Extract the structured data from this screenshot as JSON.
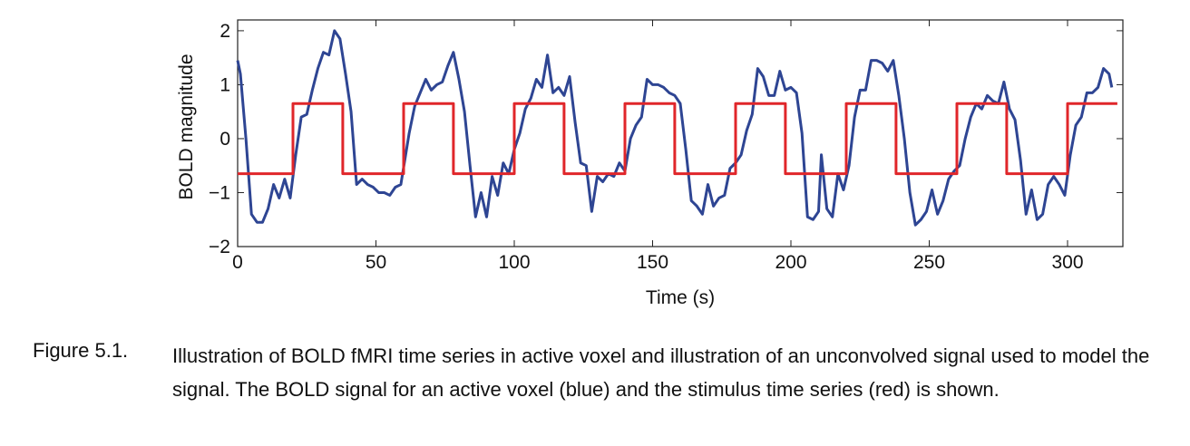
{
  "chart_data": {
    "type": "line",
    "xlabel": "Time (s)",
    "ylabel": "BOLD magnitude",
    "xlim": [
      0,
      320
    ],
    "ylim": [
      -2,
      2.2
    ],
    "xticks": [
      0,
      50,
      100,
      150,
      200,
      250,
      300
    ],
    "yticks": [
      {
        "value": -2,
        "label": "−2"
      },
      {
        "value": -1,
        "label": "−1"
      },
      0,
      1,
      2
    ],
    "series": [
      {
        "color": "#2e4593",
        "x": [
          0,
          1,
          3,
          5,
          7,
          9,
          11,
          13,
          15,
          17,
          19,
          21,
          23,
          25,
          27,
          29,
          31,
          33,
          35,
          37,
          39,
          41,
          43,
          45,
          47,
          49,
          51,
          53,
          55,
          57,
          59,
          62,
          64,
          66,
          68,
          70,
          72,
          74,
          76,
          78,
          80,
          82,
          84,
          86,
          88,
          90,
          92,
          94,
          96,
          98,
          100,
          102,
          104,
          106,
          108,
          110,
          112,
          114,
          116,
          118,
          120,
          122,
          124,
          126,
          128,
          130,
          132,
          134,
          136,
          138,
          140,
          142,
          144,
          146,
          148,
          150,
          152,
          154,
          156,
          158,
          160,
          162,
          164,
          166,
          168,
          170,
          172,
          174,
          176,
          178,
          180,
          182,
          184,
          186,
          188,
          190,
          192,
          194,
          196,
          198,
          200,
          202,
          204,
          206,
          208,
          210,
          211,
          213,
          215,
          217,
          219,
          221,
          223,
          225,
          227,
          229,
          231,
          233,
          235,
          237,
          239,
          241,
          243,
          245,
          247,
          249,
          251,
          253,
          255,
          257,
          259,
          261,
          263,
          265,
          267,
          269,
          271,
          273,
          275,
          277,
          279,
          281,
          283,
          285,
          287,
          289,
          291,
          293,
          295,
          297,
          299,
          301,
          303,
          305,
          307,
          309,
          311,
          313,
          315,
          316
        ],
        "values": [
          1.45,
          1.2,
          0,
          -1.4,
          -1.55,
          -1.55,
          -1.3,
          -0.85,
          -1.1,
          -0.75,
          -1.1,
          -0.3,
          0.4,
          0.45,
          0.9,
          1.3,
          1.6,
          1.55,
          2.0,
          1.85,
          1.2,
          0.5,
          -0.85,
          -0.75,
          -0.85,
          -0.9,
          -1.0,
          -1.0,
          -1.05,
          -0.9,
          -0.85,
          0.1,
          0.6,
          0.85,
          1.1,
          0.9,
          1.0,
          1.05,
          1.35,
          1.6,
          1.1,
          0.5,
          -0.5,
          -1.45,
          -1.0,
          -1.45,
          -0.7,
          -1.05,
          -0.45,
          -0.65,
          -0.2,
          0.1,
          0.55,
          0.75,
          1.1,
          0.95,
          1.55,
          0.85,
          0.95,
          0.8,
          1.15,
          0.3,
          -0.45,
          -0.5,
          -1.35,
          -0.7,
          -0.8,
          -0.65,
          -0.7,
          -0.45,
          -0.6,
          0,
          0.25,
          0.4,
          1.1,
          1.0,
          1.0,
          0.95,
          0.85,
          0.8,
          0.65,
          -0.2,
          -1.15,
          -1.25,
          -1.4,
          -0.85,
          -1.25,
          -1.1,
          -1.05,
          -0.55,
          -0.45,
          -0.3,
          0.15,
          0.45,
          1.3,
          1.15,
          0.8,
          0.8,
          1.25,
          0.9,
          0.95,
          0.85,
          0.1,
          -1.45,
          -1.5,
          -1.35,
          -0.3,
          -1.3,
          -1.45,
          -0.65,
          -0.95,
          -0.5,
          0.4,
          0.9,
          0.9,
          1.45,
          1.45,
          1.4,
          1.25,
          1.45,
          0.8,
          0,
          -1.0,
          -1.6,
          -1.5,
          -1.35,
          -0.95,
          -1.4,
          -1.15,
          -0.75,
          -0.6,
          -0.5,
          0,
          0.4,
          0.65,
          0.55,
          0.8,
          0.7,
          0.65,
          1.05,
          0.55,
          0.35,
          -0.4,
          -1.4,
          -0.95,
          -1.5,
          -1.4,
          -0.85,
          -0.7,
          -0.85,
          -1.05,
          -0.3,
          0.25,
          0.4,
          0.85,
          0.85,
          0.95,
          1.3,
          1.2,
          0.95
        ]
      },
      {
        "color": "#e0262a",
        "x": [
          0,
          20,
          20,
          38,
          38,
          60,
          60,
          78,
          78,
          100,
          100,
          118,
          118,
          140,
          140,
          158,
          158,
          180,
          180,
          198,
          198,
          220,
          220,
          238,
          238,
          260,
          260,
          278,
          278,
          300,
          300,
          318
        ],
        "values": [
          -0.65,
          -0.65,
          0.65,
          0.65,
          -0.65,
          -0.65,
          0.65,
          0.65,
          -0.65,
          -0.65,
          0.65,
          0.65,
          -0.65,
          -0.65,
          0.65,
          0.65,
          -0.65,
          -0.65,
          0.65,
          0.65,
          -0.65,
          -0.65,
          0.65,
          0.65,
          -0.65,
          -0.65,
          0.65,
          0.65,
          -0.65,
          -0.65,
          0.65,
          0.65
        ]
      }
    ]
  },
  "figure": {
    "label": "Figure 5.1.",
    "caption": "Illustration of BOLD fMRI time series in active voxel and illustration of an unconvolved signal used to model the signal. The BOLD signal for an active voxel (blue) and the stimulus time series (red) is shown."
  }
}
